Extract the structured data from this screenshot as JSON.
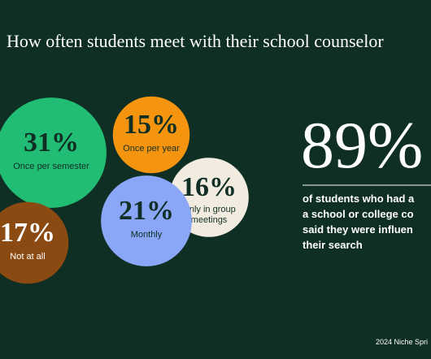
{
  "chart_data": {
    "type": "bubble",
    "title": "How often students meet with their school counselor",
    "categories": [
      "Once per semester",
      "Once per year",
      "Only in group meetings",
      "Monthly",
      "Not at all"
    ],
    "values": [
      31,
      15,
      16,
      21,
      17
    ],
    "value_labels": [
      "31%",
      "15%",
      "16%",
      "21%",
      "17%"
    ],
    "colors": [
      "#22bd74",
      "#f5950f",
      "#f2ebdf",
      "#8aa6f7",
      "#8b4a12"
    ],
    "label_colors": [
      "#0f2e24",
      "#0f2e24",
      "#0f2e24",
      "#0f2e24",
      "#ffffff"
    ]
  },
  "stat": {
    "value": "89%",
    "lines": [
      "of students who had a",
      "a school or college co",
      "said they were influen",
      "their search"
    ]
  },
  "footer": "2024 Niche Spri"
}
